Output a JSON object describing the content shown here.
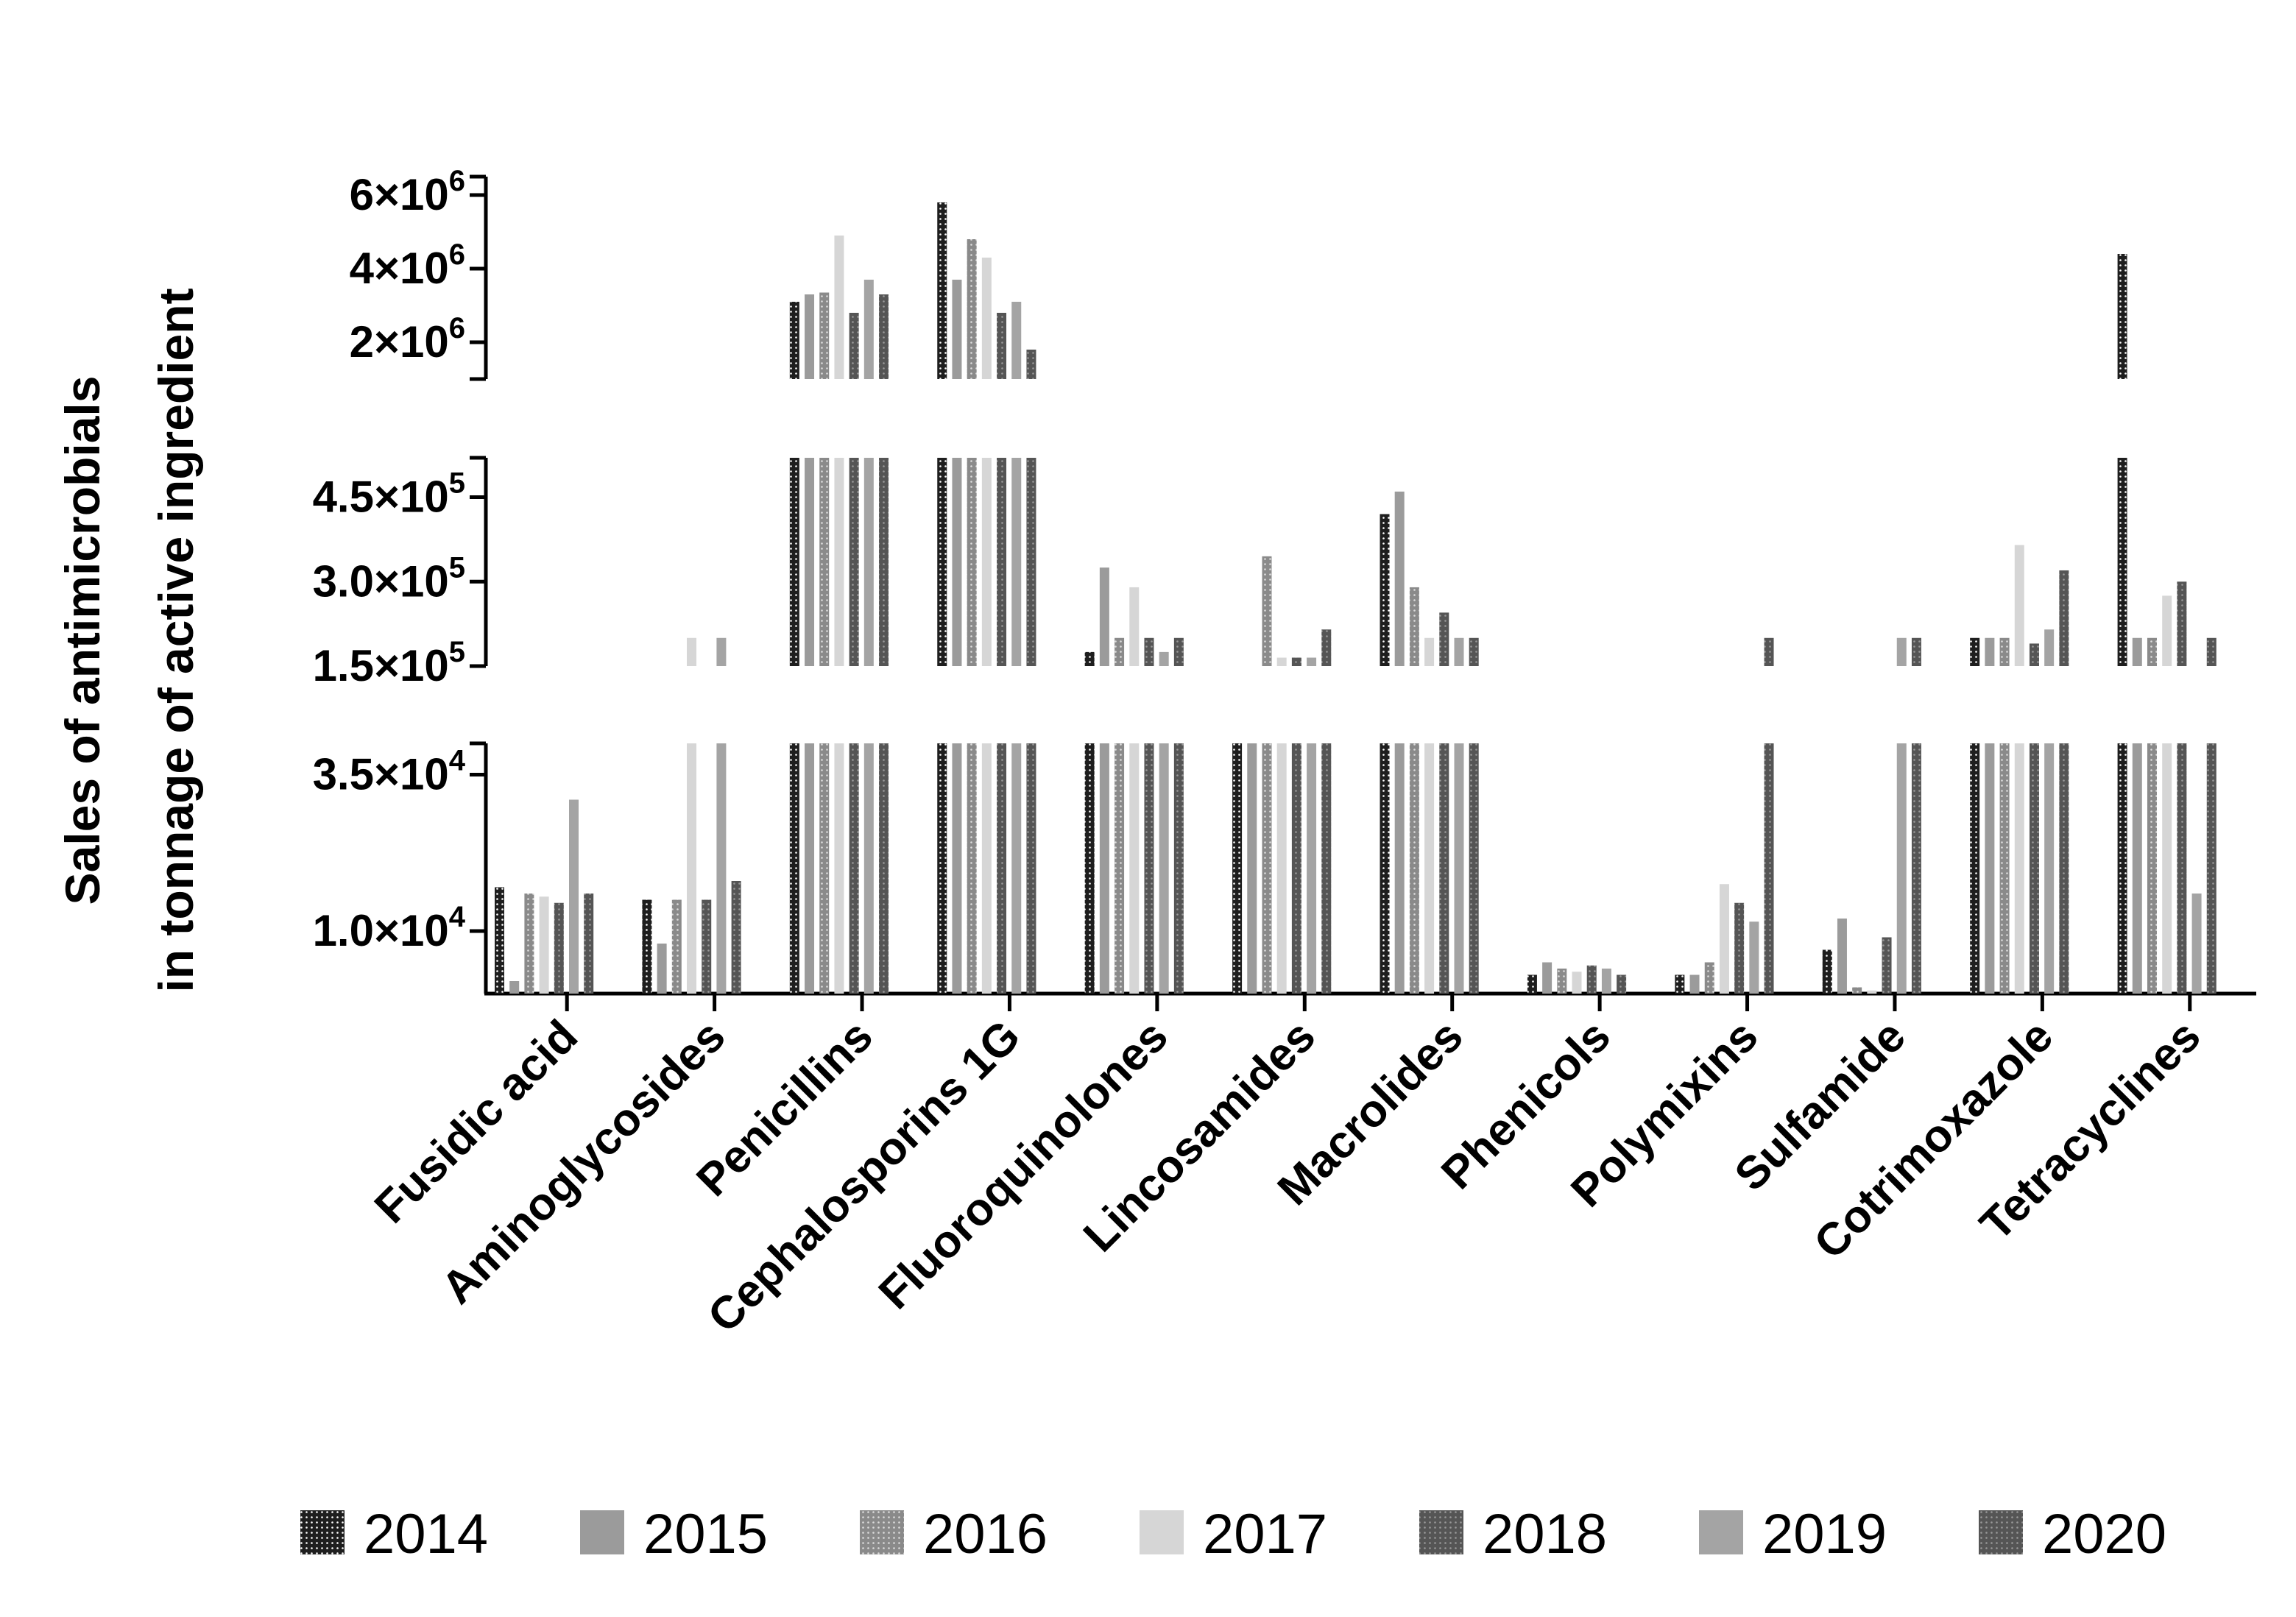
{
  "chart_data": {
    "type": "bar",
    "ylabel_lines": [
      "Sales of antimicrobials",
      "in tonnage of active ingredient"
    ],
    "categories": [
      "Fusidic acid",
      "Aminoglycosides",
      "Penicillins",
      "Cephalosporins 1G",
      "Fluoroquinolones",
      "Lincosamides",
      "Macrolides",
      "Phenicols",
      "Polymixins",
      "Sulfamide",
      "Cotrimoxazole",
      "Tetracyclines"
    ],
    "y_scale": "broken",
    "y_segments": [
      {
        "range": [
          0,
          40000
        ],
        "ticks": [
          {
            "value": 10000,
            "mantissa": "1.0×10",
            "exp": "4"
          },
          {
            "value": 35000,
            "mantissa": "3.5×10",
            "exp": "4"
          }
        ]
      },
      {
        "range": [
          150000,
          520000
        ],
        "ticks": [
          {
            "value": 150000,
            "mantissa": "1.5×10",
            "exp": "5"
          },
          {
            "value": 300000,
            "mantissa": "3.0×10",
            "exp": "5"
          },
          {
            "value": 450000,
            "mantissa": "4.5×10",
            "exp": "5"
          }
        ]
      },
      {
        "range": [
          1000000,
          6500000
        ],
        "ticks": [
          {
            "value": 2000000,
            "mantissa": "2×10",
            "exp": "6"
          },
          {
            "value": 4000000,
            "mantissa": "4×10",
            "exp": "6"
          },
          {
            "value": 6000000,
            "mantissa": "6×10",
            "exp": "6"
          }
        ]
      }
    ],
    "legend_position": "bottom",
    "series": [
      {
        "name": "2014",
        "color": "#1e1e1e",
        "pattern": "dots-white",
        "values": [
          17000,
          15000,
          3100000,
          5800000,
          175000,
          150000,
          420000,
          3000,
          3000,
          7000,
          200000,
          4400000
        ]
      },
      {
        "name": "2015",
        "color": "#9b9b9b",
        "pattern": "solid",
        "values": [
          2000,
          8000,
          3300000,
          3700000,
          325000,
          150000,
          460000,
          5000,
          3000,
          12000,
          200000,
          200000
        ]
      },
      {
        "name": "2016",
        "color": "#8a8a8a",
        "pattern": "dots-light",
        "values": [
          16000,
          15000,
          3350000,
          4800000,
          200000,
          345000,
          290000,
          4000,
          5000,
          1000,
          200000,
          200000
        ]
      },
      {
        "name": "2017",
        "color": "#d6d6d6",
        "pattern": "solid",
        "values": [
          15500,
          200000,
          4900000,
          4300000,
          290000,
          165000,
          200000,
          3500,
          17500,
          500,
          365000,
          275000
        ]
      },
      {
        "name": "2018",
        "color": "#5a5a5a",
        "pattern": "dots-dark",
        "values": [
          14500,
          15000,
          2800000,
          2800000,
          200000,
          165000,
          245000,
          4500,
          14500,
          9000,
          190000,
          300000
        ]
      },
      {
        "name": "2019",
        "color": "#a4a4a4",
        "pattern": "solid",
        "values": [
          31000,
          200000,
          3700000,
          3100000,
          175000,
          165000,
          200000,
          4000,
          11500,
          200000,
          215000,
          16000
        ]
      },
      {
        "name": "2020",
        "color": "#6a6a6a",
        "pattern": "dots-dark",
        "values": [
          16000,
          18000,
          3300000,
          1800000,
          200000,
          215000,
          200000,
          3000,
          200000,
          200000,
          320000,
          200000
        ]
      }
    ]
  }
}
